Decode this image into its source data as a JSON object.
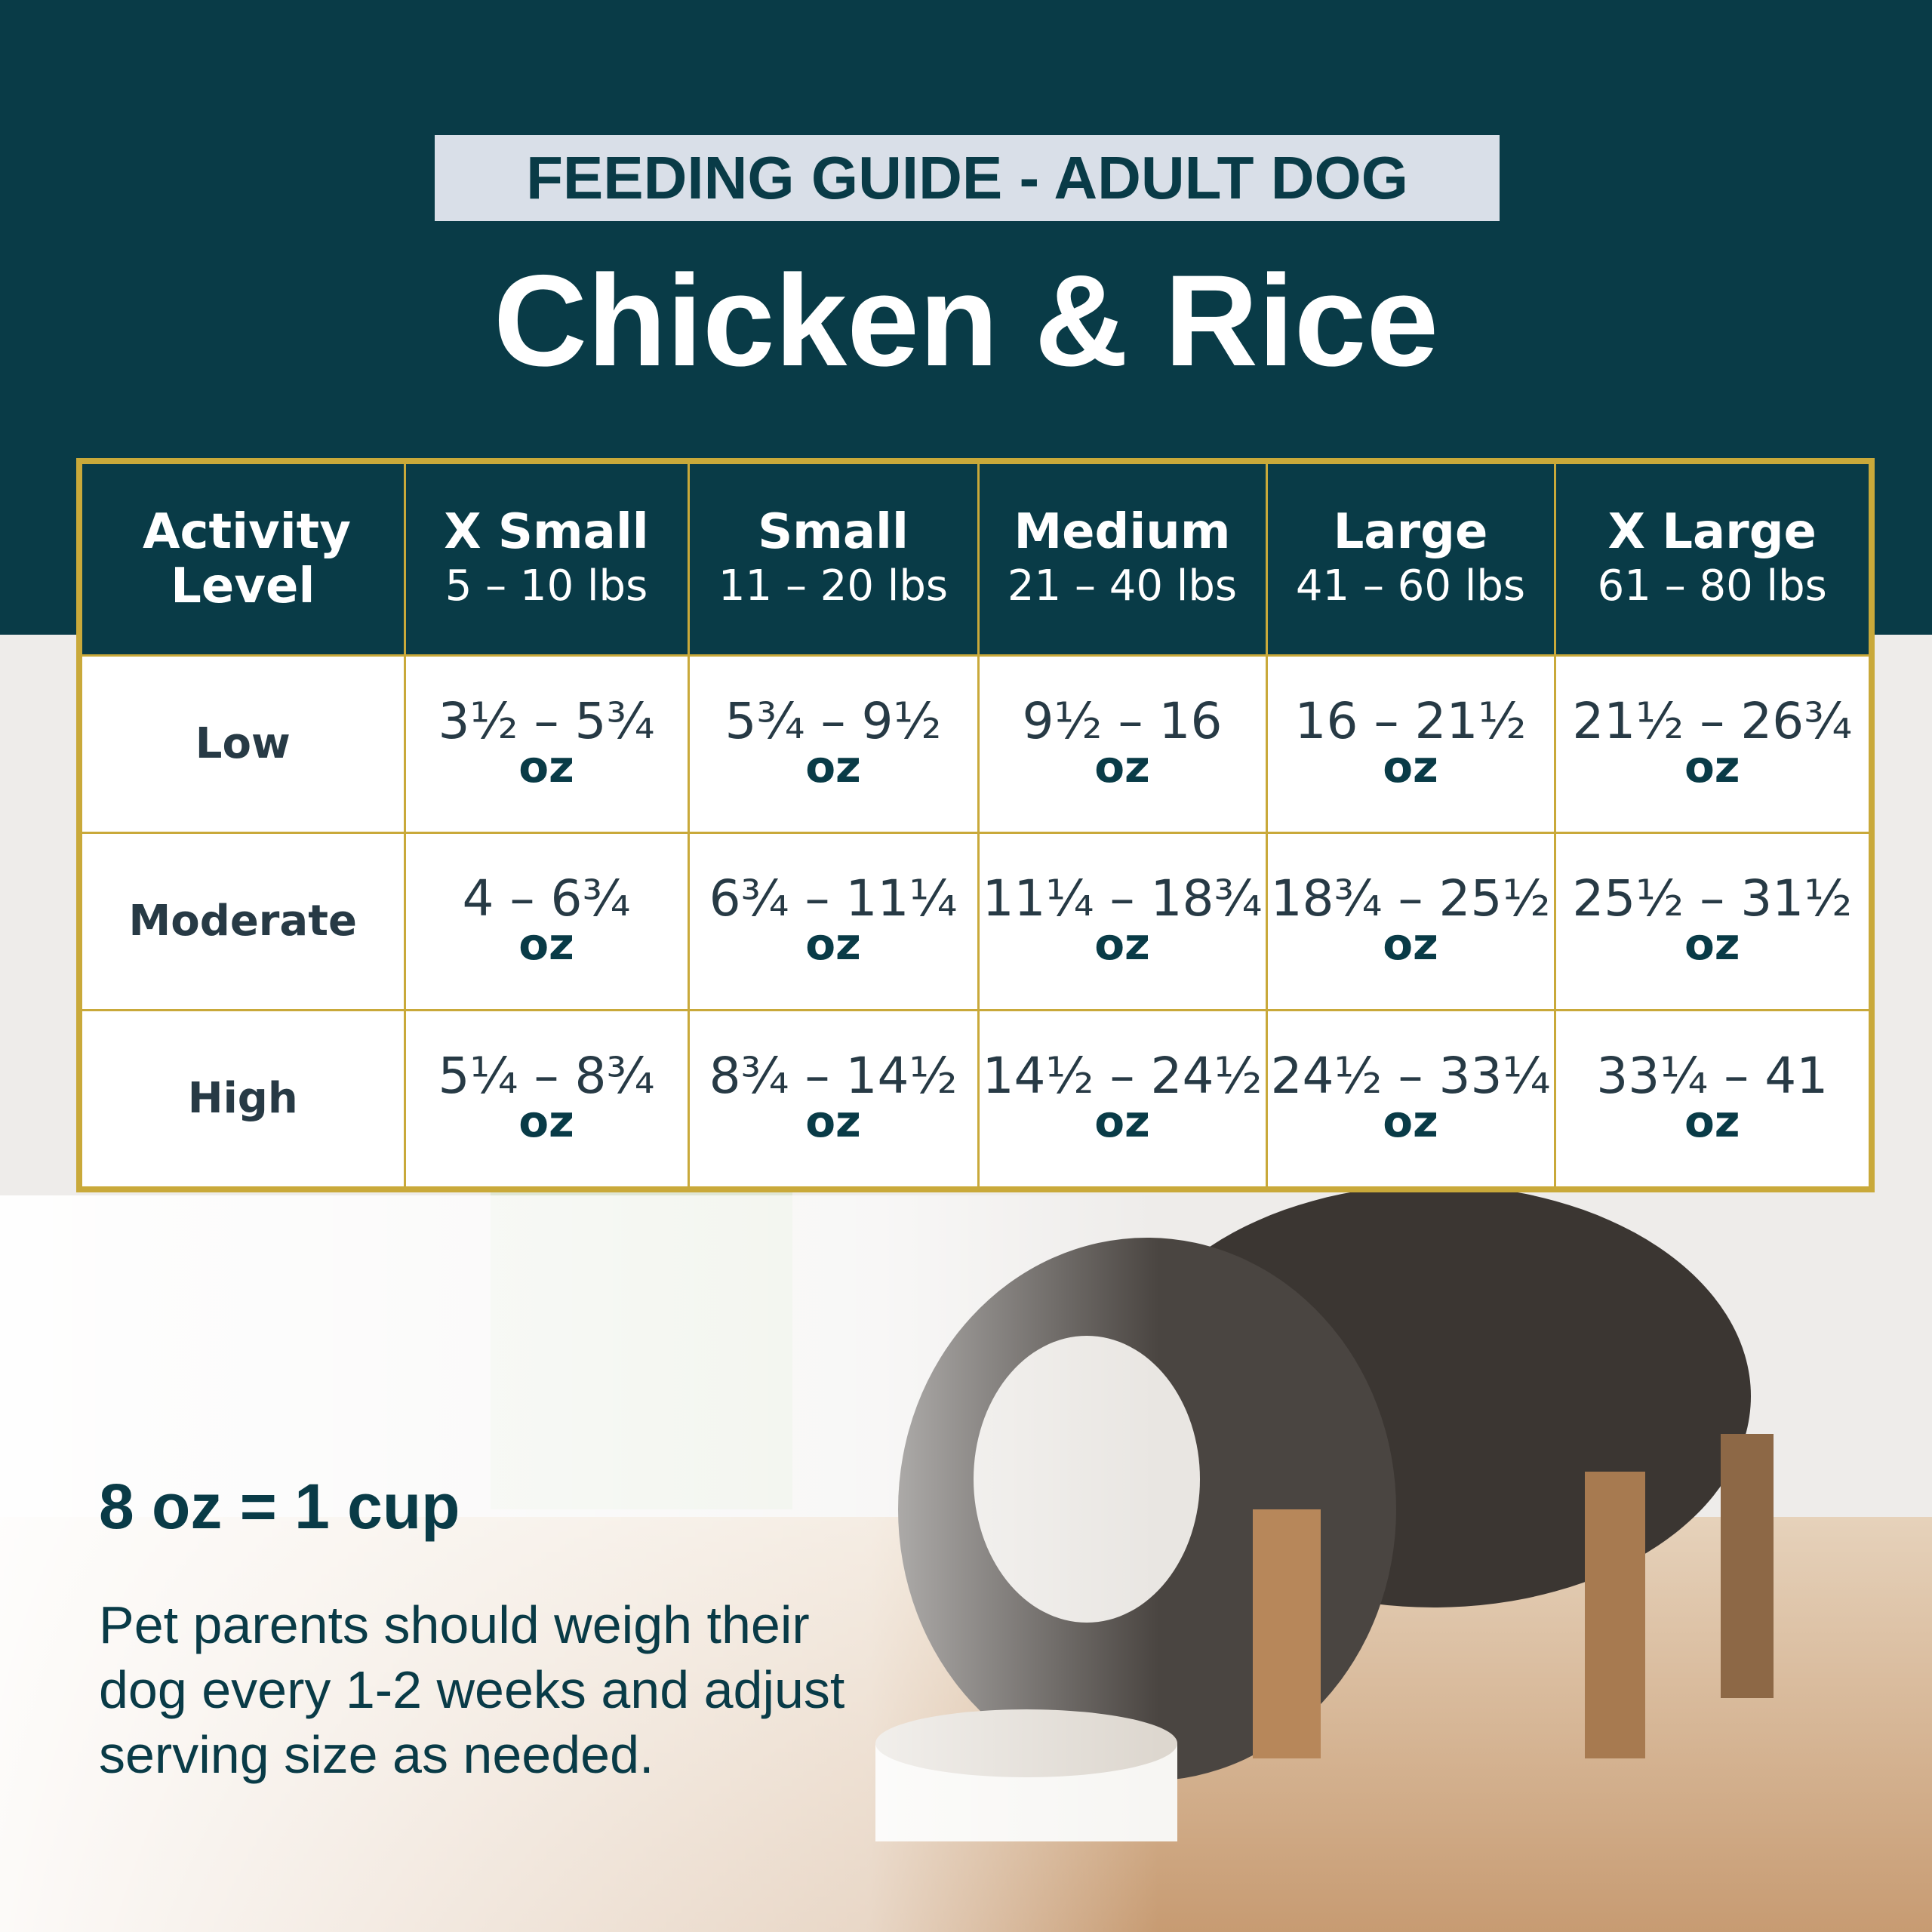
{
  "header": {
    "label": "FEEDING GUIDE - ADULT DOG",
    "title": "Chicken & Rice"
  },
  "table": {
    "corner": "Activity Level",
    "columns": [
      {
        "name": "X Small",
        "range": "5 – 10 lbs"
      },
      {
        "name": "Small",
        "range": "11 – 20 lbs"
      },
      {
        "name": "Medium",
        "range": "21 – 40 lbs"
      },
      {
        "name": "Large",
        "range": "41 – 60 lbs"
      },
      {
        "name": "X Large",
        "range": "61 – 80 lbs"
      }
    ],
    "rows": [
      {
        "label": "Low",
        "cells": [
          {
            "amount": "3½ – 5¾",
            "unit": "oz"
          },
          {
            "amount": "5¾ – 9½",
            "unit": "oz"
          },
          {
            "amount": "9½ – 16",
            "unit": "oz"
          },
          {
            "amount": "16 – 21½",
            "unit": "oz"
          },
          {
            "amount": "21½ – 26¾",
            "unit": "oz"
          }
        ]
      },
      {
        "label": "Moderate",
        "cells": [
          {
            "amount": "4 – 6¾",
            "unit": "oz"
          },
          {
            "amount": "6¾ – 11¼",
            "unit": "oz"
          },
          {
            "amount": "11¼ – 18¾",
            "unit": "oz"
          },
          {
            "amount": "18¾ – 25½",
            "unit": "oz"
          },
          {
            "amount": "25½ – 31½",
            "unit": "oz"
          }
        ]
      },
      {
        "label": "High",
        "cells": [
          {
            "amount": "5¼ – 8¾",
            "unit": "oz"
          },
          {
            "amount": "8¾ – 14½",
            "unit": "oz"
          },
          {
            "amount": "14½ – 24½",
            "unit": "oz"
          },
          {
            "amount": "24½ – 33¼",
            "unit": "oz"
          },
          {
            "amount": "33¼ – 41",
            "unit": "oz"
          }
        ]
      }
    ]
  },
  "footer": {
    "conversion": "8 oz = 1 cup",
    "note": "Pet parents should weigh their dog every 1-2 weeks and adjust serving size as needed."
  }
}
